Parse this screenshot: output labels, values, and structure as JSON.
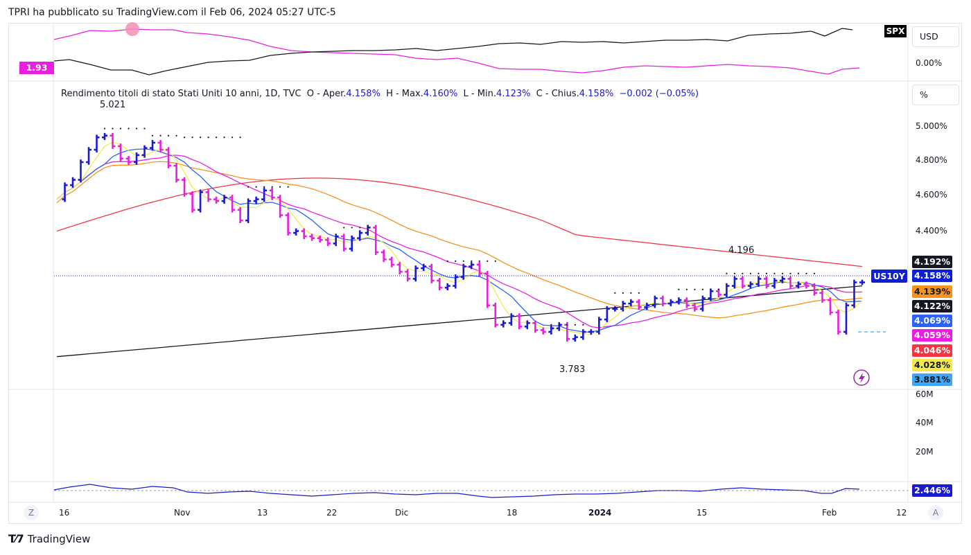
{
  "header": {
    "published": "TPRI ha pubblicato su TradingView.com il Feb 06, 2024 05:27 UTC-5"
  },
  "compare_pane": {
    "symbol": "SPX",
    "left_value": "1.93",
    "currency_button": "USD",
    "right_value": "0.00%"
  },
  "legend": {
    "name": "Rendimento titoli di stato Stati Uniti 10 anni, 1D, TVC",
    "o_label": "O - Aper.",
    "o_value": "4.158%",
    "h_label": "H - Max.",
    "h_value": "4.160%",
    "l_label": "L - Min.",
    "l_value": "4.123%",
    "c_label": "C - Chius.",
    "c_value": "4.158%",
    "change": "−0.002 (−0.05%)"
  },
  "scale_button": "%",
  "symbol_tag": "US10Y",
  "annotations": {
    "high": "5.021",
    "low": "3.783",
    "mid_high": "4.196"
  },
  "price_axis": [
    "5.000%",
    "4.800%",
    "4.600%",
    "4.400%"
  ],
  "price_labels": [
    {
      "text": "4.192%",
      "bg": "#131722",
      "fg": "#ffffff"
    },
    {
      "text": "4.158%",
      "bg": "#0c1fd6",
      "fg": "#ffffff"
    },
    {
      "text": "4.139%",
      "bg": "#f7931a",
      "fg": "#131722"
    },
    {
      "text": "4.122%",
      "bg": "#131722",
      "fg": "#ffffff"
    },
    {
      "text": "4.069%",
      "bg": "#2962ff",
      "fg": "#ffffff"
    },
    {
      "text": "4.059%",
      "bg": "#e91ee0",
      "fg": "#ffffff"
    },
    {
      "text": "4.046%",
      "bg": "#f23645",
      "fg": "#ffffff"
    },
    {
      "text": "4.028%",
      "bg": "#f5e94a",
      "fg": "#131722"
    },
    {
      "text": "3.881%",
      "bg": "#42a5f5",
      "fg": "#131722"
    }
  ],
  "volume_axis": [
    "60M",
    "40M",
    "20M"
  ],
  "oscillator": {
    "value": "2.446%"
  },
  "time_axis": [
    "16",
    "Nov",
    "13",
    "22",
    "Dic",
    "18",
    "2024",
    "15",
    "Feb",
    "12"
  ],
  "corner_buttons": {
    "left": "Z",
    "right": "A"
  },
  "footer": {
    "brand": "TradingView"
  },
  "colors": {
    "up_bar": "#1a1acf",
    "down_bar": "#e91ee0",
    "ma_black": "#131722",
    "ma_red": "#f23645",
    "ma_orange": "#f7931a",
    "ma_magenta": "#e91ee0",
    "ma_blue": "#2962ff",
    "ma_yellow": "#f5e94a"
  },
  "chart_data": {
    "type": "bar",
    "title": "Rendimento titoli di stato Stati Uniti 10 anni, 1D, TVC",
    "ylim": [
      3.68,
      5.13
    ],
    "x_range": [
      "2023-10-13",
      "2024-02-12"
    ],
    "ohlc_close": [
      4.63,
      4.71,
      4.74,
      4.84,
      4.91,
      4.98,
      4.99,
      4.93,
      4.86,
      4.84,
      4.88,
      4.92,
      4.95,
      4.91,
      4.82,
      4.74,
      4.66,
      4.57,
      4.67,
      4.63,
      4.62,
      4.64,
      4.57,
      4.51,
      4.62,
      4.63,
      4.68,
      4.64,
      4.54,
      4.44,
      4.45,
      4.42,
      4.41,
      4.4,
      4.38,
      4.42,
      4.35,
      4.41,
      4.44,
      4.47,
      4.33,
      4.29,
      4.26,
      4.22,
      4.18,
      4.24,
      4.25,
      4.17,
      4.13,
      4.14,
      4.19,
      4.25,
      4.26,
      4.21,
      4.03,
      3.92,
      3.93,
      3.97,
      3.91,
      3.93,
      3.89,
      3.88,
      3.9,
      3.92,
      3.84,
      3.85,
      3.88,
      3.88,
      3.95,
      4.01,
      4.01,
      4.04,
      4.05,
      4.02,
      4.03,
      4.07,
      4.04,
      4.05,
      4.06,
      4.03,
      4.01,
      4.07,
      4.11,
      4.09,
      4.14,
      4.18,
      4.14,
      4.15,
      4.18,
      4.14,
      4.17,
      4.18,
      4.14,
      4.15,
      4.14,
      4.1,
      4.06,
      3.99,
      3.88,
      4.03,
      4.16,
      4.16
    ]
  }
}
